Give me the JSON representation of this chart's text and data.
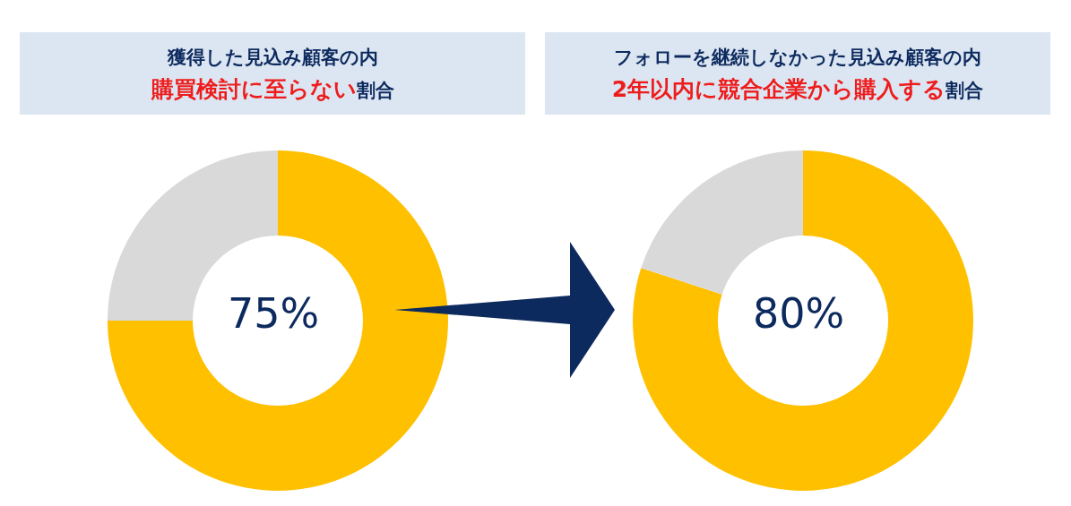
{
  "chart_data": [
    {
      "type": "donut",
      "title": "獲得した見込み顧客の内",
      "subtitle": "購買検討に至らない割合",
      "categories": [
        null,
        null
      ],
      "values": [
        75,
        25
      ],
      "colors": [
        "#ffc000",
        "#d9d9d9"
      ],
      "annotations": [
        "75%"
      ],
      "legend": false
    },
    {
      "type": "donut",
      "title": "フォローを継続しなかった見込み顧客の内",
      "subtitle": "2年以内に競合企業から購入する割合",
      "categories": [
        null,
        null
      ],
      "values": [
        80,
        20
      ],
      "colors": [
        "#ffc000",
        "#d9d9d9"
      ],
      "annotations": [
        "80%"
      ],
      "legend": false
    }
  ]
}
